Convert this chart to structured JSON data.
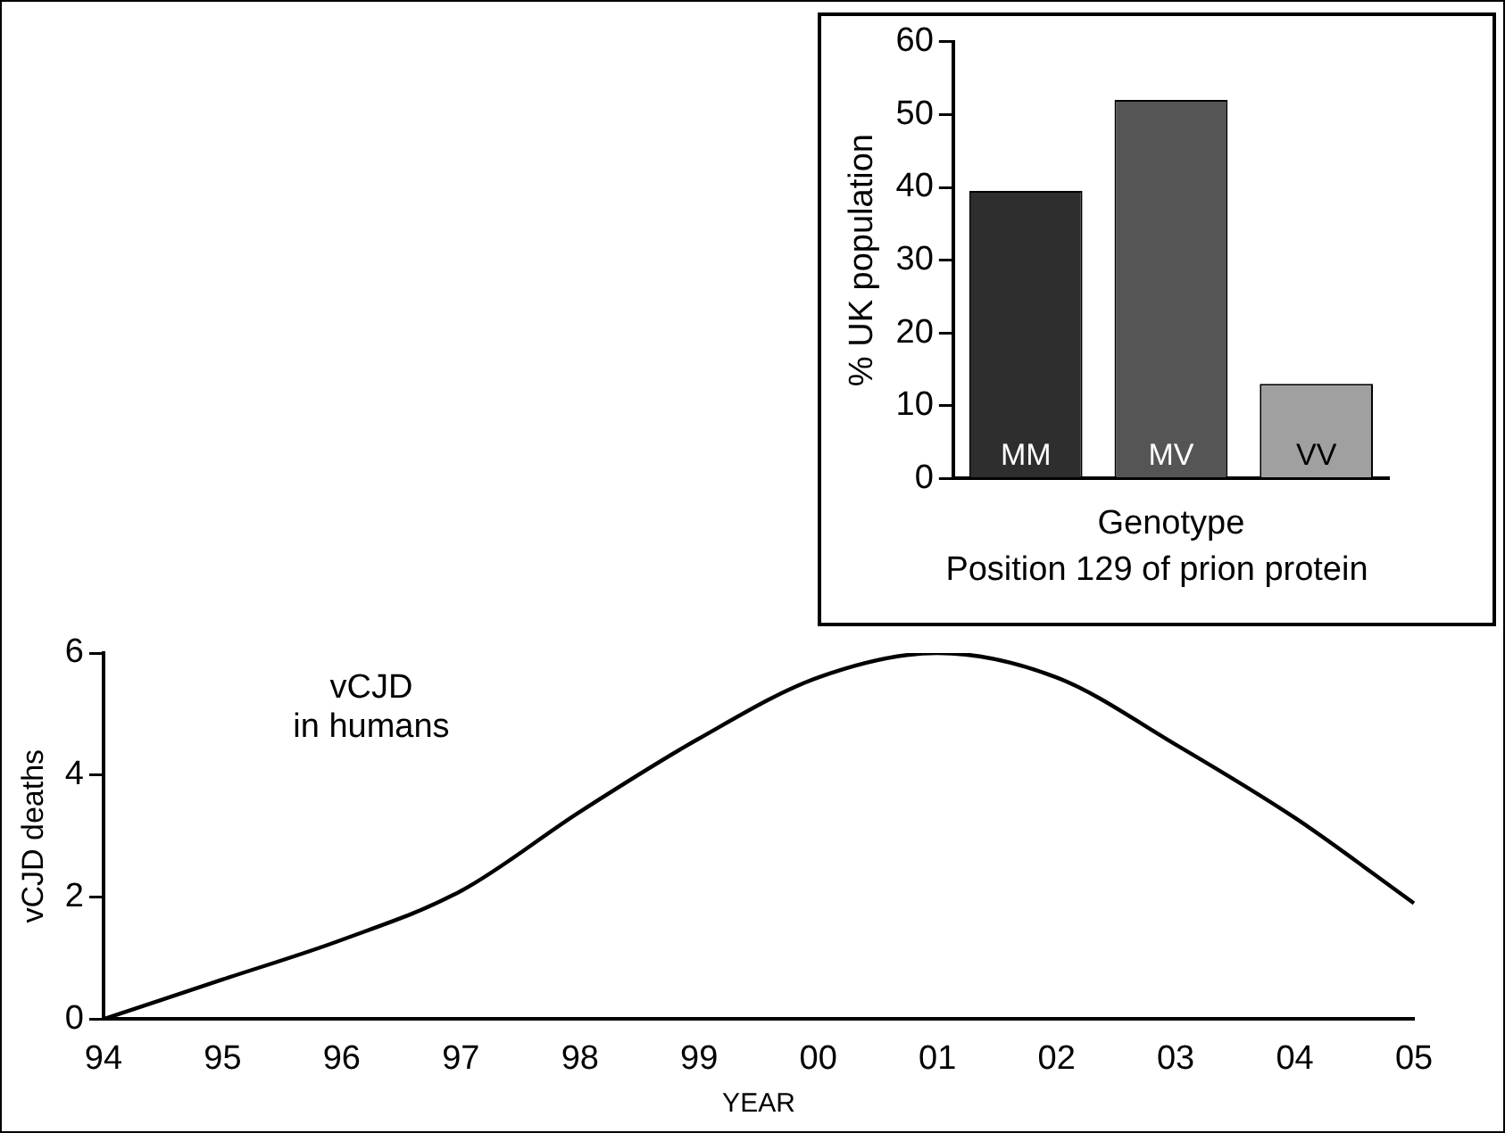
{
  "chart_data": [
    {
      "type": "line",
      "xlabel": "YEAR",
      "ylabel": "vCJD deaths",
      "annotations": [
        "vCJD\nin humans"
      ],
      "categories": [
        "94",
        "95",
        "96",
        "97",
        "98",
        "99",
        "00",
        "01",
        "02",
        "03",
        "04",
        "05"
      ],
      "series": [
        {
          "color": "#000000",
          "values": [
            0,
            0.65,
            1.3,
            2.1,
            3.4,
            4.6,
            5.6,
            6.0,
            5.6,
            4.5,
            3.3,
            1.9
          ]
        }
      ],
      "ylim": [
        0,
        6
      ],
      "yticks": [
        0,
        2,
        4,
        6
      ],
      "grid": false,
      "legend": false,
      "marker": "none",
      "line_style": "solid"
    },
    {
      "type": "bar",
      "xlabel": "Genotype",
      "ylabel": "% UK population",
      "annotations": [
        "Position 129 of prion protein"
      ],
      "categories": [
        "MM",
        "MV",
        "VV"
      ],
      "values": [
        39.5,
        52,
        13
      ],
      "colors": [
        "#2e2e2e",
        "#555555",
        "#a0a0a0"
      ],
      "ylim": [
        0,
        60
      ],
      "yticks": [
        0,
        10,
        20,
        30,
        40,
        50,
        60
      ],
      "grid": false,
      "legend": false
    }
  ]
}
